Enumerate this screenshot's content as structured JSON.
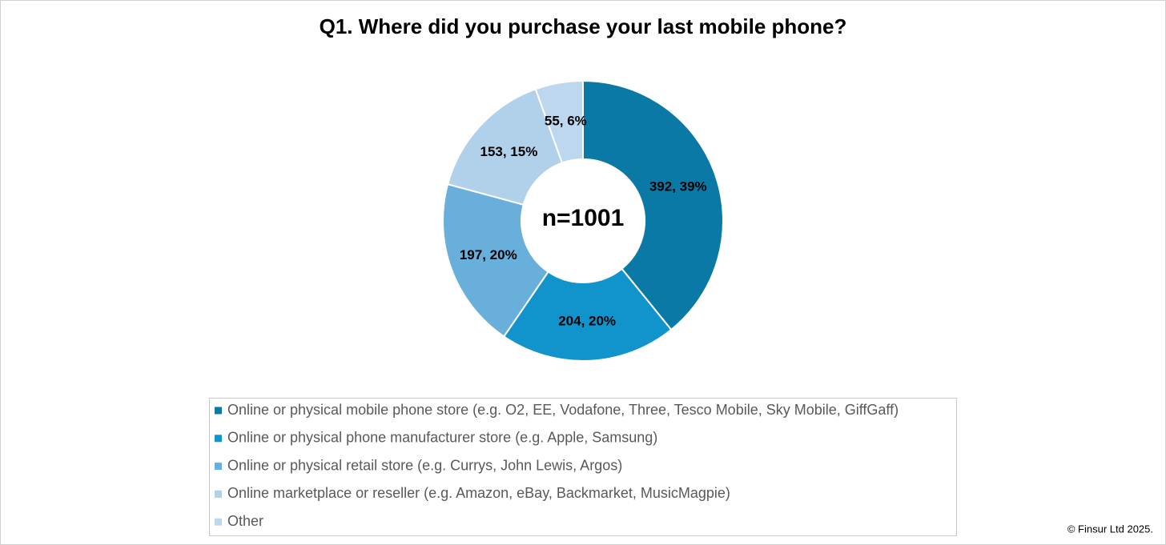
{
  "chart_data": {
    "type": "donut",
    "title": "Q1. Where did you purchase your last mobile phone?",
    "center_label": "n=1001",
    "categories": [
      "Online or physical mobile phone store (e.g. O2, EE, Vodafone, Three, Tesco Mobile, Sky Mobile, GiffGaff)",
      "Online or physical phone manufacturer store (e.g. Apple, Samsung)",
      "Online or physical retail store (e.g. Currys, John Lewis, Argos)",
      "Online marketplace or reseller (e.g. Amazon, eBay, Backmarket, MusicMagpie)",
      "Other"
    ],
    "values": [
      392,
      204,
      197,
      153,
      55
    ],
    "value_labels": [
      "392, 39%",
      "204, 20%",
      "197, 20%",
      "153, 15%",
      "55, 6%"
    ],
    "colors": [
      "#0b79a5",
      "#1193cb",
      "#68afdc",
      "#b1d0ea",
      "#bdd7ee"
    ],
    "legend": "bottom",
    "footer": "© Finsur Ltd 2025."
  }
}
